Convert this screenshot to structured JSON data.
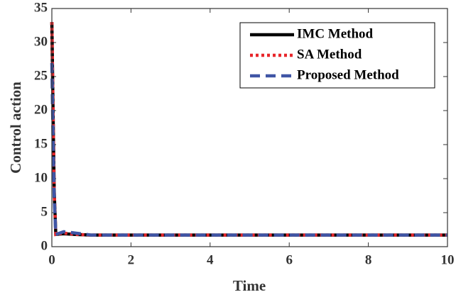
{
  "chart_data": {
    "type": "line",
    "x_label": "Time",
    "y_label": "Control action",
    "x": [
      0,
      0.03,
      0.06,
      0.1,
      0.3,
      0.6,
      1,
      2,
      4,
      6,
      8,
      10
    ],
    "series": [
      {
        "name": "IMC Method",
        "color": "#000000",
        "style": "solid",
        "values": [
          33,
          20,
          8,
          1.8,
          1.9,
          1.8,
          1.7,
          1.7,
          1.7,
          1.7,
          1.7,
          1.7
        ]
      },
      {
        "name": "SA Method",
        "color": "#e8262b",
        "style": "dotted",
        "values": [
          33,
          20,
          8,
          1.8,
          2.0,
          1.8,
          1.7,
          1.7,
          1.7,
          1.7,
          1.7,
          1.7
        ]
      },
      {
        "name": "Proposed Method",
        "color": "#3f55a5",
        "style": "dashed",
        "values": [
          27,
          16,
          7,
          1.8,
          2.2,
          2.0,
          1.7,
          1.7,
          1.7,
          1.7,
          1.7,
          1.7
        ]
      }
    ],
    "xlim": [
      0,
      10
    ],
    "xticks": [
      0,
      2,
      4,
      6,
      8,
      10
    ],
    "ylim": [
      0,
      35
    ],
    "yticks": [
      0,
      5,
      10,
      15,
      20,
      25,
      30,
      35
    ],
    "legend": "upper right",
    "grid": false
  }
}
